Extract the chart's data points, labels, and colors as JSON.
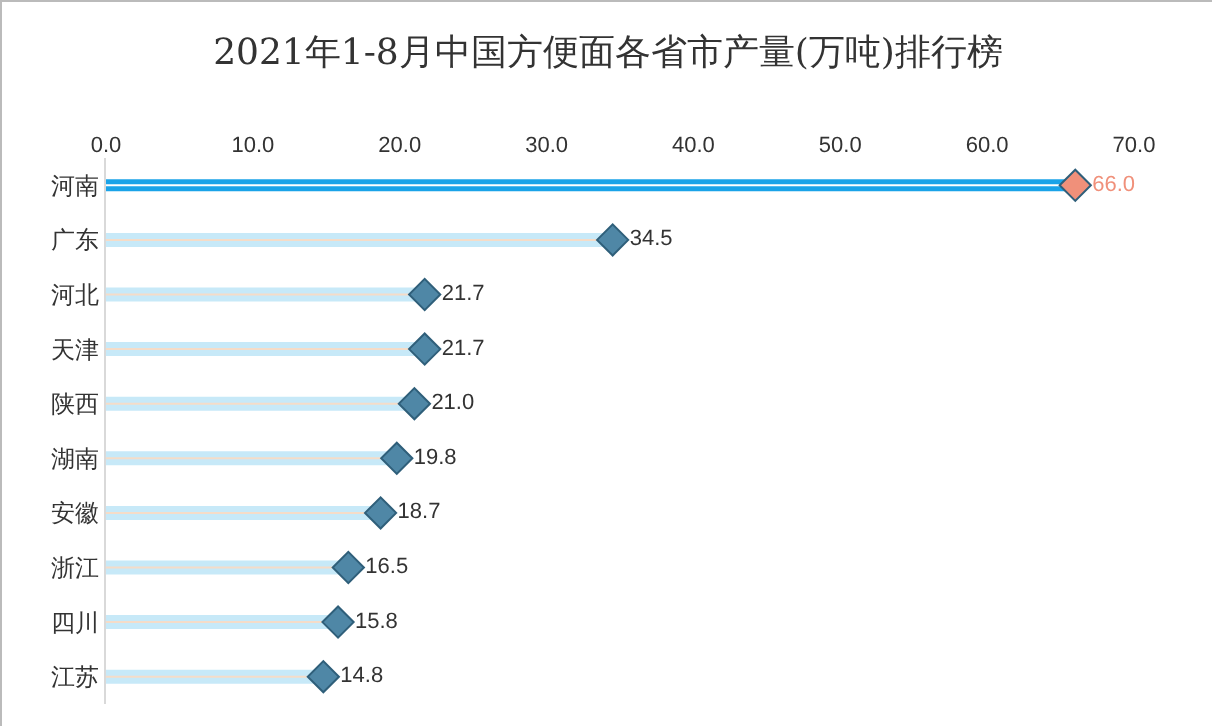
{
  "chart_data": {
    "type": "lollipop",
    "title": "2021年1-8月中国方便面各省市产量(万吨)排行榜",
    "orientation": "horizontal",
    "categories": [
      "河南",
      "广东",
      "河北",
      "天津",
      "陕西",
      "湖南",
      "安徽",
      "浙江",
      "四川",
      "江苏"
    ],
    "values": [
      66.0,
      34.5,
      21.7,
      21.7,
      21.0,
      19.8,
      18.7,
      16.5,
      15.8,
      14.8
    ],
    "colors": [
      "#f0907a",
      "#4f87a6",
      "#4f87a6",
      "#4f87a6",
      "#4f87a6",
      "#4f87a6",
      "#4f87a6",
      "#4f87a6",
      "#4f87a6",
      "#4f87a6"
    ],
    "value_labels": [
      "66.0",
      "34.5",
      "21.7",
      "21.7",
      "21.0",
      "19.8",
      "18.7",
      "16.5",
      "15.8",
      "14.8"
    ],
    "marker": "diamond",
    "grid": false,
    "xlim": [
      0,
      70
    ],
    "xticks": [
      {
        "value": 0,
        "label": "0.0"
      },
      {
        "value": 10,
        "label": "10.0"
      },
      {
        "value": 20,
        "label": "20.0"
      },
      {
        "value": 30,
        "label": "30.0"
      },
      {
        "value": 40,
        "label": "40.0"
      },
      {
        "value": 50,
        "label": "50.0"
      },
      {
        "value": 60,
        "label": "60.0"
      },
      {
        "value": 70,
        "label": "70.0"
      }
    ]
  }
}
